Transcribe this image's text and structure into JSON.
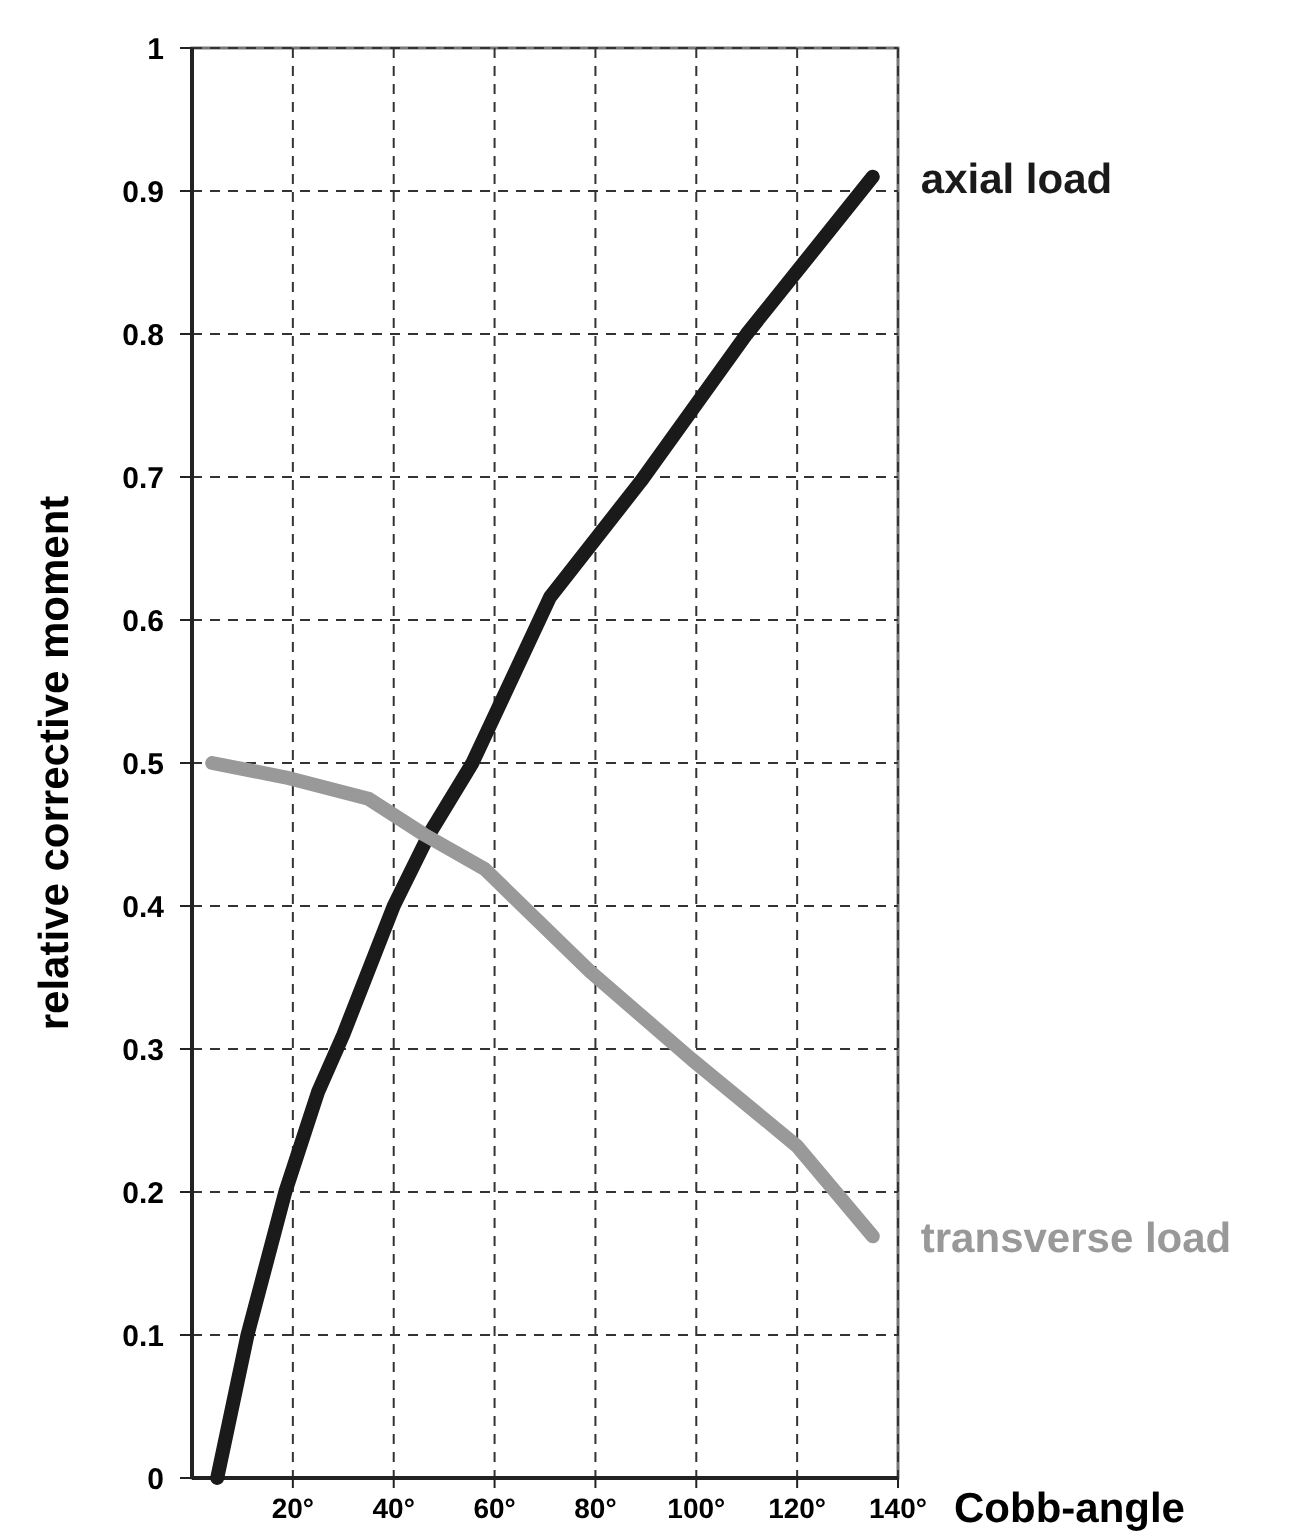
{
  "chart_data": {
    "type": "line",
    "xlabel": "Cobb-angle",
    "ylabel": "relative corrective moment",
    "xlim": [
      0,
      140
    ],
    "xticks": [
      {
        "value": 20,
        "label": "20°"
      },
      {
        "value": 40,
        "label": "40°"
      },
      {
        "value": 60,
        "label": "60°"
      },
      {
        "value": 80,
        "label": "80°"
      },
      {
        "value": 100,
        "label": "100°"
      },
      {
        "value": 120,
        "label": "120°"
      },
      {
        "value": 140,
        "label": "140°"
      }
    ],
    "ylim": [
      0,
      1
    ],
    "yticks": [
      0,
      0.1,
      0.2,
      0.3,
      0.4,
      0.5,
      0.6,
      0.7,
      0.8,
      0.9,
      1
    ],
    "grid": true,
    "line_style": "solid",
    "marker": "none",
    "series": [
      {
        "name": "axial load",
        "color": "#1a1a1a",
        "x": [
          5,
          11,
          18.5,
          25,
          30,
          40,
          47,
          55.6,
          71,
          89,
          110,
          135
        ],
        "values": [
          0,
          0.1,
          0.2,
          0.27,
          0.31,
          0.4,
          0.45,
          0.5,
          0.616,
          0.697,
          0.8,
          0.91
        ]
      },
      {
        "name": "transverse load",
        "color": "#999999",
        "x": [
          4,
          18.5,
          35,
          46,
          58,
          79,
          99,
          120,
          135
        ],
        "values": [
          0.5,
          0.49,
          0.475,
          0.45,
          0.426,
          0.354,
          0.293,
          0.232,
          0.169
        ]
      }
    ]
  }
}
